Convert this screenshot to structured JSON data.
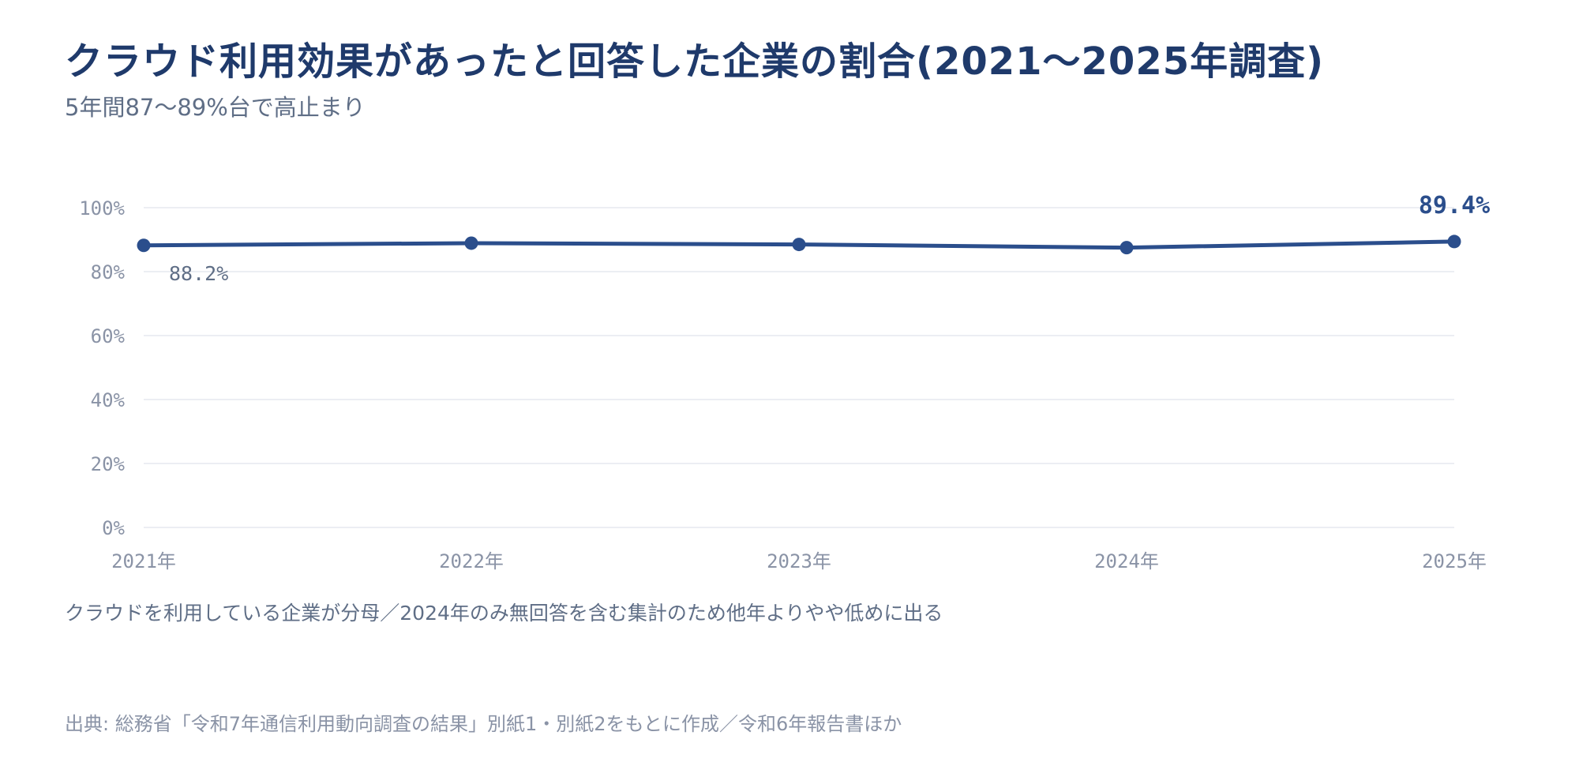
{
  "chart_data": {
    "type": "line",
    "title": "クラウド利用効果があったと回答した企業の割合(2021～2025年調査)",
    "subtitle": "5年間87～89%台で高止まり",
    "categories": [
      "2021年",
      "2022年",
      "2023年",
      "2024年",
      "2025年"
    ],
    "series": [
      {
        "values": [
          88.2,
          88.9,
          88.5,
          87.5,
          89.4
        ],
        "color": "#2b4e8c"
      }
    ],
    "data_labels": [
      {
        "index": 0,
        "text": "88.2%"
      },
      {
        "index": 4,
        "text": "89.4%"
      }
    ],
    "ylim": [
      0,
      100
    ],
    "yticks": [
      0,
      20,
      40,
      60,
      80,
      100
    ],
    "ytick_labels": [
      "0%",
      "20%",
      "40%",
      "60%",
      "80%",
      "100%"
    ],
    "grid": true,
    "legend": "none",
    "note": "クラウドを利用している企業が分母／2024年のみ無回答を含む集計のため他年よりやや低めに出る",
    "source": "出典: 総務省「令和7年通信利用動向調査の結果」別紙1・別紙2をもとに作成／令和6年報告書ほか",
    "colors": {
      "title": "#1f3a6b",
      "line": "#2b4e8c",
      "text": "#5f6e86",
      "muted": "#8a93a6",
      "grid": "#e6e9ef"
    }
  }
}
